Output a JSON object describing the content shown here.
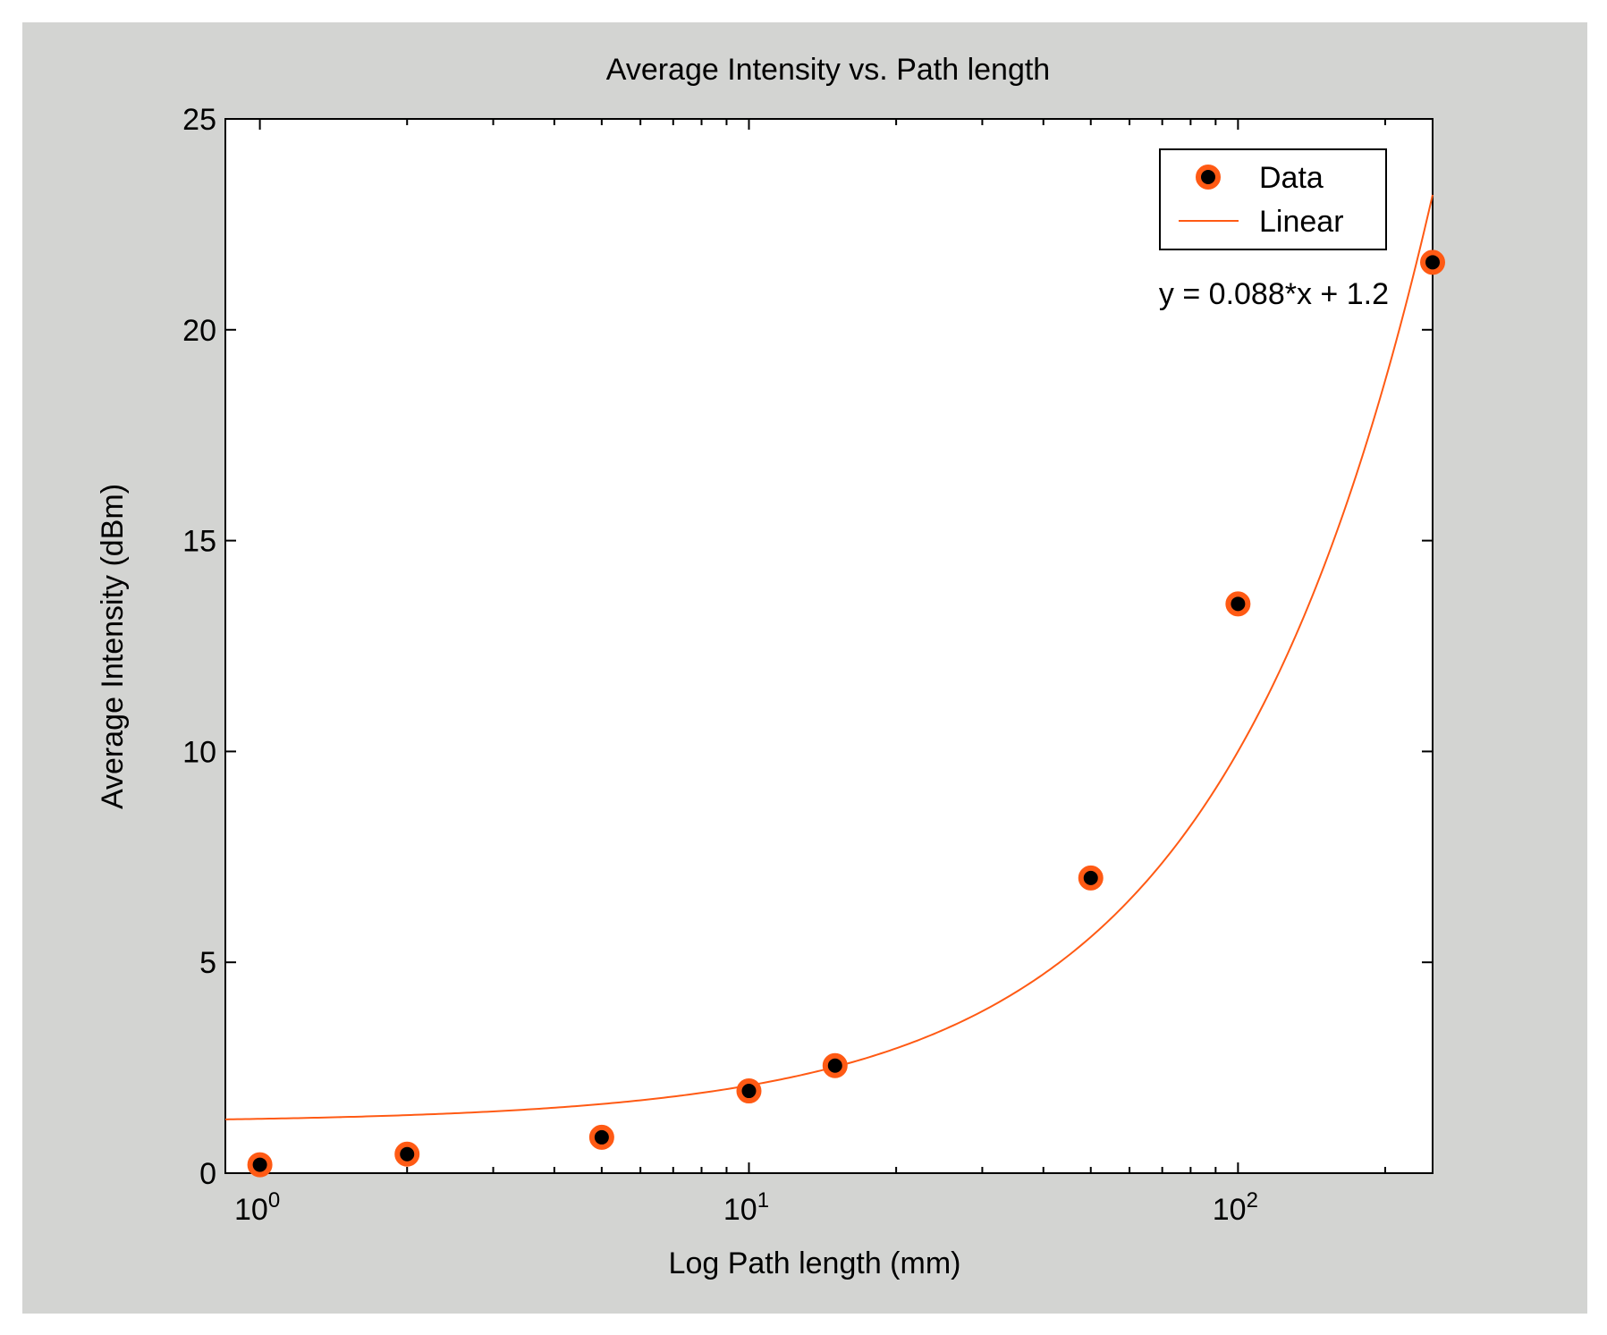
{
  "chart_data": {
    "type": "scatter",
    "title": "Average Intensity vs. Path length",
    "xlabel": "Log Path length (mm)",
    "ylabel": "Average Intensity (dBm)",
    "xscale": "log",
    "xlim": [
      0.85,
      250
    ],
    "ylim": [
      0,
      25
    ],
    "x_major_ticks": [
      {
        "value": 1,
        "base": "10",
        "exp": "0"
      },
      {
        "value": 10,
        "base": "10",
        "exp": "1"
      },
      {
        "value": 100,
        "base": "10",
        "exp": "2"
      }
    ],
    "x_minor_ticks": [
      2,
      3,
      4,
      5,
      6,
      7,
      8,
      9,
      20,
      30,
      40,
      50,
      60,
      70,
      80,
      90,
      200
    ],
    "y_ticks": [
      0,
      5,
      10,
      15,
      20,
      25
    ],
    "y_tick_labels": [
      "0",
      "5",
      "10",
      "15",
      "20",
      "25"
    ],
    "series": [
      {
        "name": "Data",
        "kind": "markers",
        "x": [
          1,
          2,
          5,
          10,
          15,
          50,
          100,
          250
        ],
        "y": [
          0.2,
          0.45,
          0.85,
          1.95,
          2.55,
          7.0,
          13.5,
          21.6
        ],
        "marker_face": "#000000",
        "marker_edge": "#ff5a14"
      },
      {
        "name": "Linear",
        "kind": "line",
        "slope": 0.088,
        "intercept": 1.2,
        "color": "#ff5a14"
      }
    ],
    "legend": {
      "position": "top-right",
      "entries": [
        "Data",
        "Linear"
      ]
    },
    "annotation": "y = 0.088*x + 1.2",
    "colors": {
      "figure_background": "#d3d4d2",
      "axes_background": "#ffffff",
      "accent": "#ff5a14"
    }
  }
}
